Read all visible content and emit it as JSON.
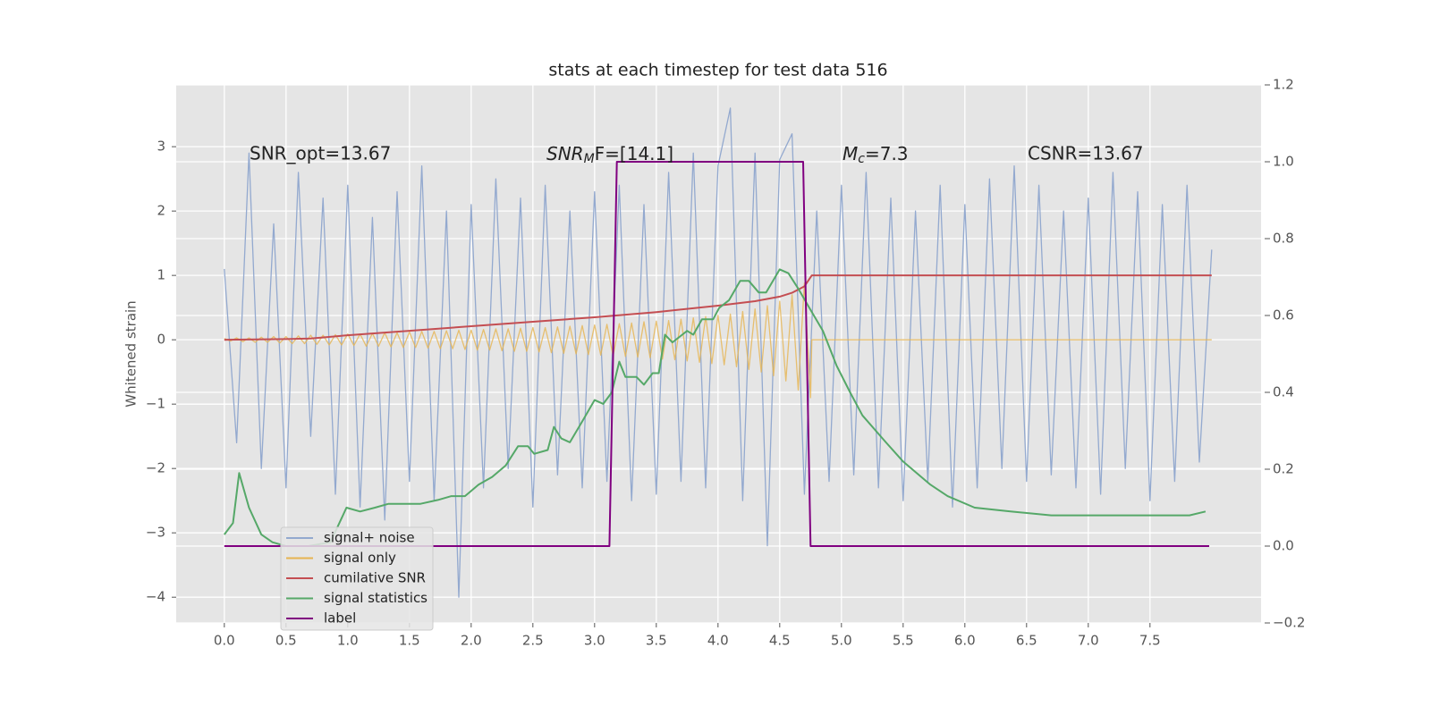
{
  "chart_data": {
    "type": "line",
    "title": "stats at each timestep for test data 516",
    "ylabel": "Whitened strain",
    "annotations": [
      "SNR_opt=13.67",
      {
        "base": "SNR",
        "sub": "M",
        "tail": "F=[14.1]"
      },
      {
        "base": "M",
        "sub": "c",
        "tail": "=7.3"
      },
      "CSNR=13.67"
    ],
    "xlim": [
      -0.39,
      8.4
    ],
    "ylim": [
      -4.4,
      3.96
    ],
    "y2lim": [
      -0.2,
      1.2
    ],
    "xticks": [
      {
        "value": 0,
        "label": "0.0"
      },
      0.5,
      {
        "value": 1,
        "label": "1.0"
      },
      1.5,
      {
        "value": 2,
        "label": "2.0"
      },
      2.5,
      {
        "value": 3,
        "label": "3.0"
      },
      3.5,
      {
        "value": 4,
        "label": "4.0"
      },
      4.5,
      {
        "value": 5,
        "label": "5.0"
      },
      5.5,
      {
        "value": 6,
        "label": "6.0"
      },
      6.5,
      {
        "value": 7,
        "label": "7.0"
      },
      7.5
    ],
    "yticks": [
      {
        "value": -4,
        "label": "−4"
      },
      {
        "value": -3,
        "label": "−3"
      },
      {
        "value": -2,
        "label": "−2"
      },
      {
        "value": -1,
        "label": "−1"
      },
      0,
      1,
      2,
      3
    ],
    "y2ticks": [
      {
        "value": -0.2,
        "label": "−0.2"
      },
      {
        "value": 0,
        "label": "0.0"
      },
      0.2,
      0.4,
      0.6,
      0.8,
      {
        "value": 1,
        "label": "1.0"
      },
      1.2
    ],
    "grid": true,
    "legend": "lower left",
    "series": [
      {
        "name": "signal+ noise",
        "color": "#93a9cf",
        "x": [
          0,
          0.1,
          0.2,
          0.3,
          0.4,
          0.5,
          0.6,
          0.7,
          0.8,
          0.9,
          1,
          1.1,
          1.2,
          1.3,
          1.4,
          1.5,
          1.6,
          1.7,
          1.8,
          1.9,
          2,
          2.1,
          2.2,
          2.3,
          2.4,
          2.5,
          2.6,
          2.7,
          2.8,
          2.9,
          3,
          3.1,
          3.2,
          3.3,
          3.4,
          3.5,
          3.6,
          3.7,
          3.8,
          3.9,
          4,
          4.1,
          4.2,
          4.3,
          4.4,
          4.5,
          4.6,
          4.7,
          4.8,
          4.9,
          5,
          5.1,
          5.2,
          5.3,
          5.4,
          5.5,
          5.6,
          5.7,
          5.8,
          5.9,
          6,
          6.1,
          6.2,
          6.3,
          6.4,
          6.5,
          6.6,
          6.7,
          6.8,
          6.9,
          7,
          7.1,
          7.2,
          7.3,
          7.4,
          7.5,
          7.6,
          7.7,
          7.8,
          7.9,
          8
        ],
        "values": [
          1.1,
          -1.6,
          2.9,
          -2.0,
          1.8,
          -2.3,
          2.6,
          -1.5,
          2.2,
          -2.4,
          2.4,
          -2.6,
          1.9,
          -2.8,
          2.3,
          -2.2,
          2.7,
          -2.5,
          2.0,
          -4.0,
          2.1,
          -2.3,
          2.5,
          -2.0,
          2.2,
          -2.6,
          2.4,
          -2.1,
          2.0,
          -2.3,
          2.3,
          -2.2,
          2.4,
          -2.5,
          2.1,
          -2.4,
          2.6,
          -2.2,
          2.9,
          -2.3,
          2.7,
          3.6,
          -2.5,
          2.9,
          -3.2,
          2.8,
          3.2,
          -2.4,
          2.0,
          -2.2,
          2.4,
          -2.1,
          2.6,
          -2.3,
          2.2,
          -2.5,
          2.0,
          -2.2,
          2.4,
          -2.6,
          2.1,
          -2.3,
          2.5,
          -2.0,
          2.7,
          -2.2,
          2.4,
          -2.1,
          2.0,
          -2.3,
          2.2,
          -2.4,
          2.6,
          -2.0,
          2.3,
          -2.5,
          2.1,
          -2.2,
          2.4,
          -1.9,
          1.4
        ]
      },
      {
        "name": "signal only",
        "color": "#e6b450",
        "x": [
          0,
          0.05,
          0.1,
          0.15,
          0.2,
          0.25,
          0.3,
          0.35,
          0.4,
          0.45,
          0.5,
          0.55,
          0.6,
          0.65,
          0.7,
          0.75,
          0.8,
          0.85,
          0.9,
          0.95,
          1,
          1.05,
          1.1,
          1.15,
          1.2,
          1.25,
          1.3,
          1.35,
          1.4,
          1.45,
          1.5,
          1.55,
          1.6,
          1.65,
          1.7,
          1.75,
          1.8,
          1.85,
          1.9,
          1.95,
          2,
          2.05,
          2.1,
          2.15,
          2.2,
          2.25,
          2.3,
          2.35,
          2.4,
          2.45,
          2.5,
          2.55,
          2.6,
          2.65,
          2.7,
          2.75,
          2.8,
          2.85,
          2.9,
          2.95,
          3,
          3.05,
          3.1,
          3.15,
          3.2,
          3.25,
          3.3,
          3.35,
          3.4,
          3.45,
          3.5,
          3.55,
          3.6,
          3.65,
          3.7,
          3.75,
          3.8,
          3.85,
          3.9,
          3.95,
          4,
          4.05,
          4.1,
          4.15,
          4.2,
          4.25,
          4.3,
          4.35,
          4.4,
          4.45,
          4.5,
          4.55,
          4.6,
          4.65,
          4.7,
          4.75,
          4.76,
          8
        ],
        "values": [
          0.02,
          -0.02,
          0.03,
          -0.03,
          0.03,
          -0.04,
          0.04,
          -0.04,
          0.05,
          -0.05,
          0.05,
          -0.06,
          0.06,
          -0.06,
          0.07,
          -0.07,
          0.07,
          -0.08,
          0.08,
          -0.08,
          0.09,
          -0.09,
          0.09,
          -0.1,
          0.1,
          -0.1,
          0.11,
          -0.11,
          0.11,
          -0.12,
          0.12,
          -0.12,
          0.13,
          -0.13,
          0.13,
          -0.14,
          0.14,
          -0.14,
          0.15,
          -0.15,
          0.15,
          -0.16,
          0.16,
          -0.16,
          0.17,
          -0.17,
          0.17,
          -0.18,
          0.18,
          -0.18,
          0.19,
          -0.19,
          0.19,
          -0.2,
          0.2,
          -0.21,
          0.21,
          -0.22,
          0.22,
          -0.23,
          0.23,
          -0.24,
          0.24,
          -0.25,
          0.25,
          -0.26,
          0.26,
          -0.27,
          0.28,
          -0.28,
          0.29,
          -0.3,
          0.3,
          -0.31,
          0.32,
          -0.33,
          0.34,
          -0.35,
          0.36,
          -0.37,
          0.38,
          -0.39,
          0.4,
          -0.42,
          0.44,
          -0.46,
          0.48,
          -0.5,
          0.53,
          -0.56,
          0.6,
          -0.64,
          0.7,
          -0.78,
          0.88,
          -0.9,
          0,
          0
        ]
      },
      {
        "name": "cumilative SNR",
        "color": "#c44e52",
        "x": [
          0,
          0.5,
          0.7,
          1,
          1.5,
          2,
          2.5,
          3,
          3.5,
          4,
          4.3,
          4.5,
          4.6,
          4.7,
          4.76,
          5,
          6,
          7,
          8
        ],
        "values": [
          0,
          0.01,
          0.02,
          0.07,
          0.14,
          0.21,
          0.28,
          0.35,
          0.43,
          0.53,
          0.6,
          0.67,
          0.73,
          0.83,
          1,
          1,
          1,
          1,
          1
        ]
      },
      {
        "name": "signal statistics",
        "color": "#55a868",
        "axis": "y2",
        "x": [
          0,
          0.07,
          0.12,
          0.2,
          0.3,
          0.39,
          0.5,
          0.68,
          0.86,
          0.99,
          1.1,
          1.22,
          1.33,
          1.59,
          1.73,
          1.84,
          1.95,
          2.06,
          2.17,
          2.28,
          2.38,
          2.46,
          2.51,
          2.62,
          2.67,
          2.73,
          2.8,
          2.91,
          3,
          3.07,
          3.14,
          3.2,
          3.25,
          3.34,
          3.4,
          3.47,
          3.52,
          3.57,
          3.63,
          3.75,
          3.8,
          3.87,
          3.96,
          4.01,
          4.09,
          4.18,
          4.25,
          4.33,
          4.39,
          4.5,
          4.57,
          4.65,
          4.74,
          4.85,
          4.96,
          5.07,
          5.17,
          5.36,
          5.5,
          5.72,
          5.86,
          6.08,
          6.37,
          6.7,
          7.09,
          7.53,
          7.82,
          7.95
        ],
        "values": [
          0.03,
          0.06,
          0.19,
          0.1,
          0.03,
          0.01,
          0,
          0,
          0.01,
          0.1,
          0.09,
          0.1,
          0.11,
          0.11,
          0.12,
          0.13,
          0.13,
          0.16,
          0.18,
          0.21,
          0.26,
          0.26,
          0.24,
          0.25,
          0.31,
          0.28,
          0.27,
          0.33,
          0.38,
          0.37,
          0.4,
          0.48,
          0.44,
          0.44,
          0.42,
          0.45,
          0.45,
          0.55,
          0.53,
          0.56,
          0.55,
          0.59,
          0.59,
          0.62,
          0.64,
          0.69,
          0.69,
          0.66,
          0.66,
          0.72,
          0.71,
          0.67,
          0.62,
          0.56,
          0.47,
          0.4,
          0.34,
          0.27,
          0.22,
          0.16,
          0.13,
          0.1,
          0.09,
          0.08,
          0.08,
          0.08,
          0.08,
          0.09
        ]
      },
      {
        "name": "label",
        "color": "#800080",
        "axis": "y2",
        "x": [
          0,
          3.12,
          3.18,
          4.69,
          4.75,
          7.98
        ],
        "values": [
          0,
          0,
          1,
          1,
          0,
          0
        ]
      }
    ]
  }
}
